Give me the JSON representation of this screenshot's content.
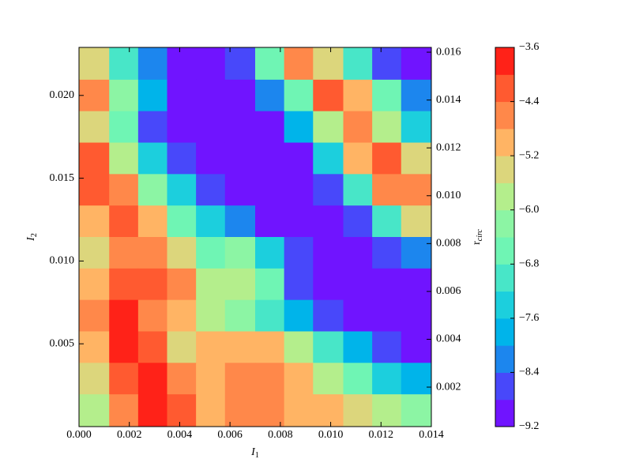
{
  "chart_data": {
    "type": "contourf",
    "xlabel": {
      "text": "I",
      "sub": "1"
    },
    "ylabel": {
      "text": "I",
      "sub": "2"
    },
    "y2label": {
      "text": "r",
      "sub": "circ"
    },
    "xlim": [
      0,
      0.014
    ],
    "ylim": [
      0,
      0.0229
    ],
    "y2lim": [
      0.00035,
      0.0162
    ],
    "xticks": [
      {
        "value": 0,
        "label": "0.000"
      },
      0.002,
      0.004,
      0.006,
      0.008,
      {
        "value": 0.01,
        "label": "0.010"
      },
      0.012,
      0.014
    ],
    "yticks": [
      0.005,
      {
        "value": 0.01,
        "label": "0.010"
      },
      0.015,
      {
        "value": 0.02,
        "label": "0.020"
      }
    ],
    "y2ticks": [
      0.002,
      0.004,
      0.006,
      0.008,
      {
        "value": 0.01,
        "label": "0.010"
      },
      0.012,
      0.014,
      0.016
    ],
    "x": [
      0.0006,
      0.0018,
      0.0029,
      0.0041,
      0.0052,
      0.0064,
      0.0076,
      0.0087,
      0.0099,
      0.0111,
      0.0122,
      0.0134
    ],
    "y": [
      0.0219,
      0.02,
      0.0181,
      0.0162,
      0.0143,
      0.0124,
      0.0105,
      0.0086,
      0.0067,
      0.0048,
      0.0029,
      0.001
    ],
    "z": [
      [
        -5.6,
        -7.0,
        -8.2,
        -9.0,
        -9.0,
        -8.6,
        -6.5,
        -4.6,
        -5.6,
        -7.0,
        -8.5,
        -9.0
      ],
      [
        -4.8,
        -6.2,
        -8.0,
        -9.0,
        -9.0,
        -9.0,
        -8.2,
        -6.5,
        -4.2,
        -5.0,
        -6.8,
        -8.4
      ],
      [
        -5.6,
        -6.8,
        -8.6,
        -9.0,
        -9.0,
        -9.0,
        -9.0,
        -8.0,
        -5.8,
        -4.6,
        -5.8,
        -7.6
      ],
      [
        -4.4,
        -5.8,
        -7.4,
        -8.8,
        -9.0,
        -9.0,
        -9.0,
        -9.0,
        -7.6,
        -5.2,
        -4.2,
        -5.4
      ],
      [
        -4.4,
        -4.6,
        -6.2,
        -7.6,
        -8.6,
        -9.0,
        -9.0,
        -9.0,
        -8.8,
        -7.2,
        -4.8,
        -4.6
      ],
      [
        -5.0,
        -4.4,
        -5.0,
        -6.8,
        -7.6,
        -8.4,
        -9.0,
        -9.0,
        -9.0,
        -8.6,
        -7.0,
        -5.6
      ],
      [
        -5.4,
        -4.8,
        -4.6,
        -5.6,
        -6.6,
        -6.2,
        -7.4,
        -8.8,
        -9.0,
        -9.0,
        -8.8,
        -8.2
      ],
      [
        -5.0,
        -4.4,
        -4.4,
        -4.6,
        -6.0,
        -5.8,
        -6.8,
        -8.6,
        -9.0,
        -9.0,
        -9.0,
        -9.0
      ],
      [
        -4.8,
        -4.0,
        -4.6,
        -5.2,
        -5.8,
        -6.4,
        -7.2,
        -7.8,
        -8.6,
        -9.0,
        -9.0,
        -9.0
      ],
      [
        -5.2,
        -4.0,
        -4.2,
        -5.4,
        -5.2,
        -5.0,
        -5.2,
        -6.0,
        -7.0,
        -8.0,
        -8.8,
        -9.0
      ],
      [
        -5.6,
        -4.2,
        -4.0,
        -4.8,
        -5.0,
        -4.6,
        -4.6,
        -5.0,
        -5.8,
        -6.6,
        -7.4,
        -8.0
      ],
      [
        -6.0,
        -4.8,
        -4.0,
        -4.2,
        -5.0,
        -4.6,
        -4.6,
        -5.0,
        -5.2,
        -5.6,
        -6.0,
        -6.4
      ]
    ],
    "levels": [
      -9.2,
      -8.8,
      -8.4,
      -8.0,
      -7.6,
      -7.2,
      -6.8,
      -6.4,
      -6.0,
      -5.6,
      -5.2,
      -4.8,
      -4.4,
      -4.0,
      -3.6
    ],
    "colors": [
      "#7014ff",
      "#4848fa",
      "#1c86ee",
      "#00b4ea",
      "#1ccfdd",
      "#48e6c8",
      "#6ff5b4",
      "#8cf5a4",
      "#b4ee8c",
      "#dcd67c",
      "#ffb464",
      "#ff884a",
      "#ff5a30",
      "#ff2218"
    ],
    "cbticks": [
      {
        "value": -3.6,
        "label": "−3.6"
      },
      {
        "value": -4.4,
        "label": "−4.4"
      },
      {
        "value": -5.2,
        "label": "−5.2"
      },
      {
        "value": -6.0,
        "label": "−6.0"
      },
      {
        "value": -6.8,
        "label": "−6.8"
      },
      {
        "value": -7.6,
        "label": "−7.6"
      },
      {
        "value": -8.4,
        "label": "−8.4"
      },
      {
        "value": -9.2,
        "label": "−9.2"
      }
    ]
  }
}
